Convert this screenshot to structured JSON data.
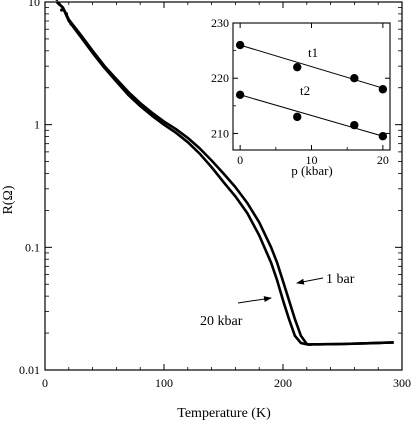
{
  "chart_data": [
    {
      "type": "line",
      "xlabel": "Temperature (K)",
      "ylabel": "R(Ω)",
      "xlim": [
        0,
        300
      ],
      "ylim": [
        0.01,
        10
      ],
      "yscale": "log",
      "grid": false,
      "x_ticks": [
        0,
        100,
        200,
        300
      ],
      "x_tick_labels": [
        "0",
        "100",
        "200",
        "300"
      ],
      "y_ticks": [
        0.01,
        0.1,
        1,
        10
      ],
      "y_tick_labels": [
        "0.01",
        "0.1",
        "1",
        "10"
      ],
      "annotations": [
        {
          "text": "1 bar",
          "arrow_to_series": "1 bar"
        },
        {
          "text": "20 kbar",
          "arrow_to_series": "20 kbar"
        }
      ],
      "series": [
        {
          "name": "1 bar",
          "x": [
            10,
            15,
            20,
            30,
            40,
            50,
            60,
            70,
            80,
            90,
            100,
            110,
            120,
            130,
            140,
            150,
            160,
            170,
            180,
            190,
            195,
            200,
            205,
            210,
            215,
            220,
            222,
            225,
            230,
            250,
            270,
            293
          ],
          "y": [
            10,
            9.0,
            7.2,
            5.4,
            4.0,
            3.0,
            2.35,
            1.85,
            1.5,
            1.25,
            1.06,
            0.92,
            0.78,
            0.64,
            0.51,
            0.4,
            0.31,
            0.23,
            0.16,
            0.1,
            0.075,
            0.053,
            0.037,
            0.026,
            0.019,
            0.0163,
            0.0161,
            0.0162,
            0.0162,
            0.0163,
            0.0165,
            0.0168
          ]
        },
        {
          "name": "20 kbar",
          "x": [
            10,
            15,
            20,
            30,
            40,
            50,
            60,
            70,
            80,
            90,
            100,
            110,
            120,
            130,
            140,
            150,
            160,
            170,
            180,
            190,
            195,
            200,
            205,
            210,
            215,
            220,
            222,
            225,
            230,
            250,
            270,
            293
          ],
          "y": [
            10,
            9.0,
            7.0,
            5.2,
            3.85,
            2.9,
            2.25,
            1.75,
            1.42,
            1.18,
            1.0,
            0.86,
            0.72,
            0.58,
            0.45,
            0.34,
            0.26,
            0.19,
            0.125,
            0.075,
            0.054,
            0.037,
            0.026,
            0.019,
            0.0166,
            0.0162,
            0.0161,
            0.0162,
            0.0162,
            0.0163,
            0.0165,
            0.0168
          ]
        }
      ]
    },
    {
      "type": "scatter",
      "xlabel": "p (kbar)",
      "ylabel": "",
      "xlim": [
        -1,
        21
      ],
      "ylim": [
        207,
        230
      ],
      "grid": false,
      "x_ticks": [
        0,
        10,
        20
      ],
      "x_tick_labels": [
        "0",
        "10",
        "20"
      ],
      "y_ticks": [
        210,
        220,
        230
      ],
      "y_tick_labels": [
        "210",
        "220",
        "230"
      ],
      "series": [
        {
          "name": "t1",
          "x": [
            0,
            8,
            16,
            20
          ],
          "y": [
            226,
            222,
            220,
            218
          ]
        },
        {
          "name": "t2",
          "x": [
            0,
            8,
            16,
            20
          ],
          "y": [
            217,
            213,
            211.5,
            209.5
          ]
        }
      ],
      "fit_lines": [
        {
          "series": "t1",
          "from": [
            0,
            226
          ],
          "to": [
            20,
            218.2
          ]
        },
        {
          "series": "t2",
          "from": [
            0,
            217
          ],
          "to": [
            20,
            209.5
          ]
        }
      ]
    }
  ]
}
